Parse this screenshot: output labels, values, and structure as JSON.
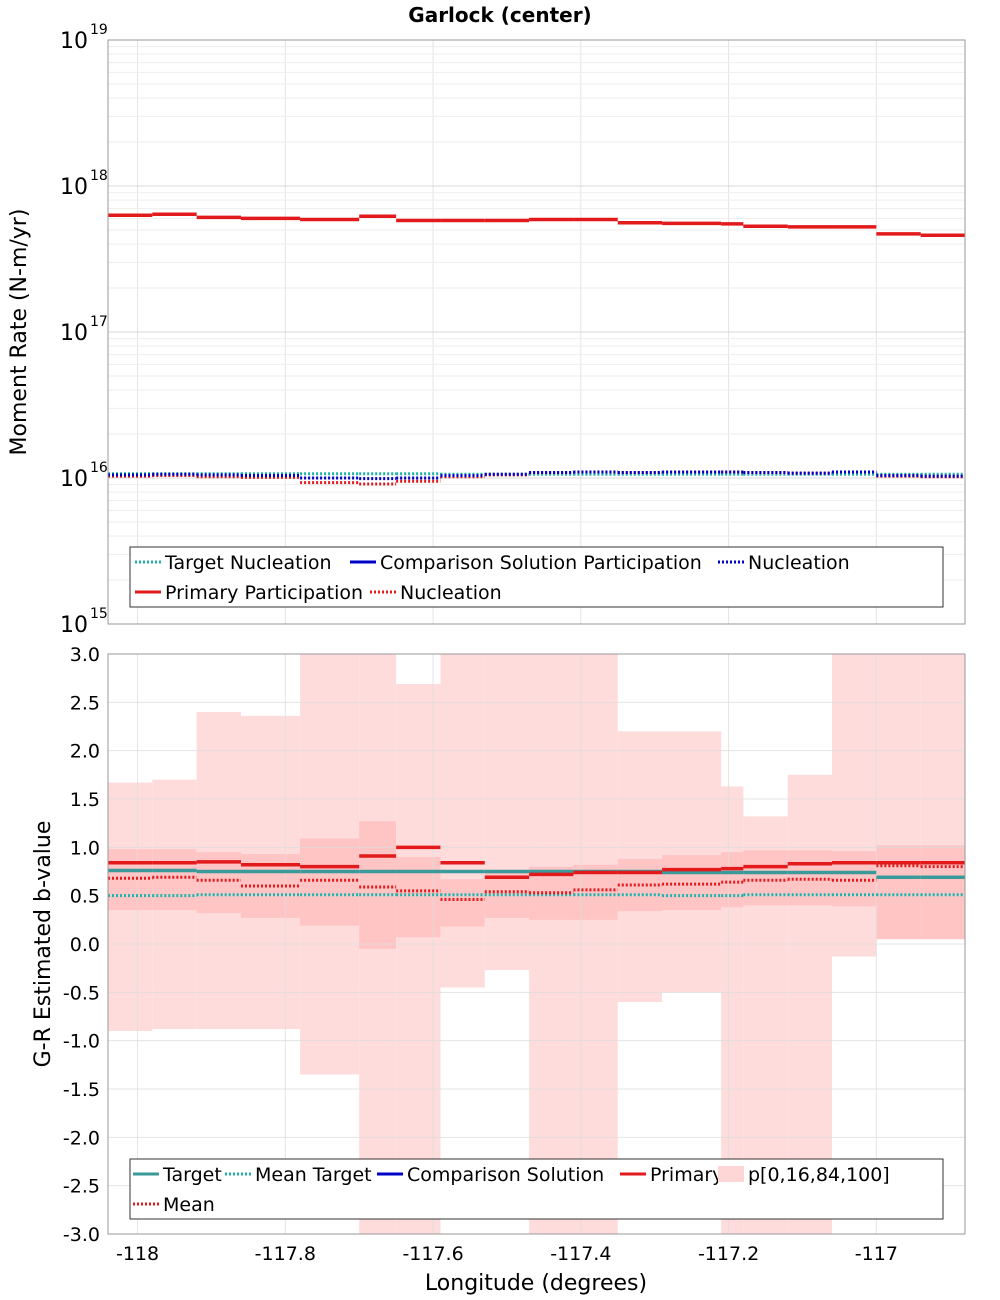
{
  "chart_data": [
    {
      "type": "line",
      "title": "Garlock (center)",
      "ylabel": "Moment Rate (N-m/yr)",
      "xlabel": "",
      "yscale": "log",
      "ylim": [
        1000000000000000.0,
        1e+19
      ],
      "xlim": [
        -118.04,
        -116.88
      ],
      "grid": true,
      "yticks": [
        {
          "base": "10",
          "exp": "15"
        },
        {
          "base": "10",
          "exp": "16"
        },
        {
          "base": "10",
          "exp": "17"
        },
        {
          "base": "10",
          "exp": "18"
        },
        {
          "base": "10",
          "exp": "19"
        }
      ],
      "legend_position": "bottom",
      "legend": [
        {
          "label": "Target Nucleation",
          "color": "#20b2aa",
          "style": "dotted"
        },
        {
          "label": "Comparison Solution Participation",
          "color": "#0000c8",
          "style": "solid"
        },
        {
          "label": "Nucleation",
          "color": "#0000c8",
          "style": "dotted"
        },
        {
          "label": "Primary Participation",
          "color": "#e31a1c",
          "style": "solid"
        },
        {
          "label": "Nucleation",
          "color": "#e31a1c",
          "style": "dotted"
        }
      ],
      "bin_edges": [
        -118.04,
        -117.98,
        -117.92,
        -117.86,
        -117.78,
        -117.7,
        -117.65,
        -117.59,
        -117.53,
        -117.47,
        -117.41,
        -117.35,
        -117.29,
        -117.21,
        -117.18,
        -117.12,
        -117.06,
        -117.0,
        -116.94,
        -116.88
      ],
      "series": [
        {
          "name": "Target Nucleation",
          "color": "#20b2aa",
          "style": "dotted",
          "values": [
            1.07e+16,
            1.07e+16,
            1.07e+16,
            1.07e+16,
            1.07e+16,
            1.07e+16,
            1.07e+16,
            1.06e+16,
            1.06e+16,
            1.06e+16,
            1.06e+16,
            1.06e+16,
            1.06e+16,
            1.06e+16,
            1.06e+16,
            1.06e+16,
            1.06e+16,
            1.06e+16,
            1.06e+16
          ]
        },
        {
          "name": "Primary Participation",
          "color": "#e31a1c",
          "style": "solid",
          "values": [
            6.3e+17,
            6.4e+17,
            6.1e+17,
            6e+17,
            5.9e+17,
            6.2e+17,
            5.8e+17,
            5.8e+17,
            5.8e+17,
            5.9e+17,
            5.9e+17,
            5.6e+17,
            5.55e+17,
            5.5e+17,
            5.3e+17,
            5.25e+17,
            5.25e+17,
            4.7e+17,
            4.6e+17
          ]
        },
        {
          "name": "Nucleation",
          "color": "#e31a1c",
          "style": "dotted",
          "values": [
            1.03e+16,
            1.04e+16,
            1.02e+16,
            1.01e+16,
            9300000000000000.0,
            9100000000000000.0,
            9500000000000000.0,
            1.02e+16,
            1.05e+16,
            1.09e+16,
            1.1e+16,
            1.09e+16,
            1.1e+16,
            1.1e+16,
            1.09e+16,
            1.08e+16,
            1.1e+16,
            1.03e+16,
            1.02e+16
          ]
        },
        {
          "name": "Comparison Nucleation",
          "color": "#0000c8",
          "style": "dotted",
          "values": [
            1.05e+16,
            1.06e+16,
            1.05e+16,
            1.04e+16,
            1e+16,
            9900000000000000.0,
            1e+16,
            1.04e+16,
            1.06e+16,
            1.09e+16,
            1.1e+16,
            1.09e+16,
            1.1e+16,
            1.1e+16,
            1.09e+16,
            1.08e+16,
            1.1e+16,
            1.04e+16,
            1.03e+16
          ]
        }
      ]
    },
    {
      "type": "line",
      "title": "",
      "ylabel": "G-R Estimated b-value",
      "xlabel": "Longitude (degrees)",
      "ylim": [
        -3.0,
        3.0
      ],
      "xlim": [
        -118.04,
        -116.88
      ],
      "grid": true,
      "yticks": [
        "-3.0",
        "-2.5",
        "-2.0",
        "-1.5",
        "-1.0",
        "-0.5",
        "0.0",
        "0.5",
        "1.0",
        "1.5",
        "2.0",
        "2.5",
        "3.0"
      ],
      "ytick_values": [
        -3,
        -2.5,
        -2,
        -1.5,
        -1,
        -0.5,
        0,
        0.5,
        1,
        1.5,
        2,
        2.5,
        3
      ],
      "xticks": [
        "-118",
        "-117.8",
        "-117.6",
        "-117.4",
        "-117.2",
        "-117"
      ],
      "xtick_values": [
        -118,
        -117.8,
        -117.6,
        -117.4,
        -117.2,
        -117
      ],
      "legend_position": "bottom",
      "legend": [
        {
          "label": "Target",
          "color": "#3a9a9a",
          "style": "solid"
        },
        {
          "label": "Mean Target",
          "color": "#20b2aa",
          "style": "dotted"
        },
        {
          "label": "Comparison Solution",
          "color": "#0000c8",
          "style": "solid"
        },
        {
          "label": "Primary",
          "color": "#e31a1c",
          "style": "solid"
        },
        {
          "label": "p[0,16,84,100]",
          "color": "#ffd6d6",
          "style": "fill"
        },
        {
          "label": "Mean",
          "color": "#e31a1c",
          "style": "dotted"
        }
      ],
      "bin_edges": [
        -118.04,
        -117.98,
        -117.92,
        -117.86,
        -117.78,
        -117.7,
        -117.65,
        -117.59,
        -117.53,
        -117.47,
        -117.41,
        -117.35,
        -117.29,
        -117.21,
        -117.18,
        -117.12,
        -117.06,
        -117.0,
        -116.94,
        -116.88
      ],
      "p0": [
        -0.9,
        -0.88,
        -0.88,
        -0.88,
        -1.35,
        -3.0,
        -3.0,
        -0.45,
        -0.27,
        -3.0,
        -3.0,
        -0.6,
        -0.5,
        -3.0,
        -3.0,
        -3.0,
        -0.13,
        0.05,
        0.05
      ],
      "p100": [
        1.67,
        1.7,
        2.4,
        2.36,
        3.0,
        3.0,
        2.69,
        3.0,
        3.0,
        3.0,
        3.0,
        2.2,
        2.2,
        1.63,
        1.32,
        1.75,
        3.0,
        3.0,
        3.0
      ],
      "p16": [
        0.35,
        0.35,
        0.32,
        0.27,
        0.19,
        -0.05,
        0.07,
        0.18,
        0.27,
        0.25,
        0.25,
        0.34,
        0.35,
        0.38,
        0.4,
        0.4,
        0.39,
        0.05,
        0.05
      ],
      "p84": [
        0.98,
        0.98,
        0.95,
        0.93,
        1.09,
        1.27,
        0.9,
        0.67,
        0.75,
        0.8,
        0.82,
        0.88,
        0.92,
        0.95,
        0.97,
        0.97,
        0.96,
        1.02,
        1.02
      ],
      "series": [
        {
          "name": "Target",
          "color": "#3a9a9a",
          "style": "solid",
          "values": [
            0.76,
            0.76,
            0.75,
            0.75,
            0.75,
            0.75,
            0.75,
            0.75,
            0.75,
            0.75,
            0.75,
            0.75,
            0.74,
            0.74,
            0.74,
            0.74,
            0.74,
            0.69,
            0.69
          ]
        },
        {
          "name": "Mean Target",
          "color": "#20b2aa",
          "style": "dotted",
          "values": [
            0.5,
            0.5,
            0.51,
            0.51,
            0.51,
            0.51,
            0.51,
            0.51,
            0.51,
            0.51,
            0.51,
            0.51,
            0.5,
            0.5,
            0.51,
            0.51,
            0.51,
            0.51,
            0.51
          ]
        },
        {
          "name": "Primary",
          "color": "#e31a1c",
          "style": "solid",
          "values": [
            0.84,
            0.84,
            0.85,
            0.82,
            0.8,
            0.91,
            1.0,
            0.84,
            0.69,
            0.72,
            0.74,
            0.74,
            0.77,
            0.78,
            0.8,
            0.83,
            0.84,
            0.84,
            0.84
          ]
        },
        {
          "name": "Mean",
          "color": "#e31a1c",
          "style": "dotted",
          "values": [
            0.68,
            0.69,
            0.66,
            0.6,
            0.66,
            0.59,
            0.55,
            0.46,
            0.54,
            0.53,
            0.56,
            0.61,
            0.62,
            0.64,
            0.66,
            0.67,
            0.66,
            0.81,
            0.8
          ]
        }
      ]
    }
  ]
}
